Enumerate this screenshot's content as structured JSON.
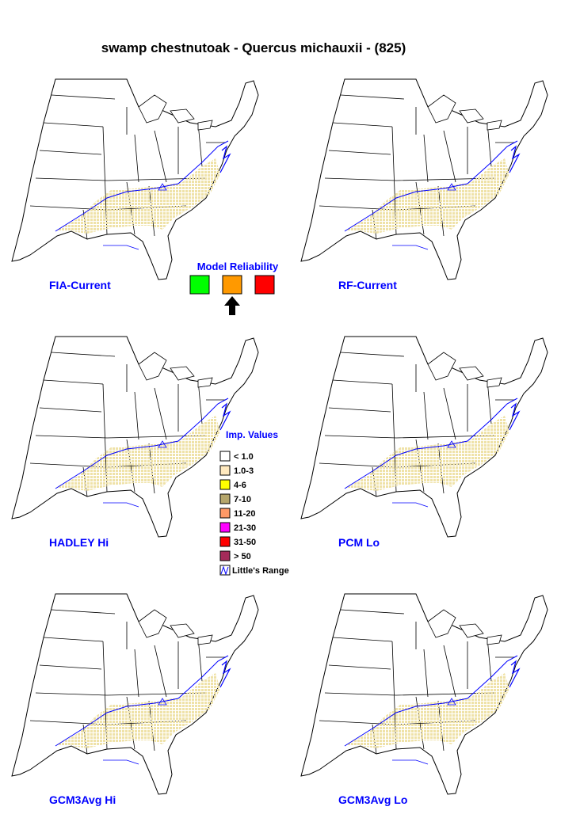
{
  "title": "swamp chestnutoak - Quercus michauxii - (825)",
  "maps": [
    {
      "label": "FIA-Current"
    },
    {
      "label": "RF-Current"
    },
    {
      "label": "HADLEY Hi"
    },
    {
      "label": "PCM Lo"
    },
    {
      "label": "GCM3Avg Hi"
    },
    {
      "label": "GCM3Avg Lo"
    }
  ],
  "model_reliability": {
    "title": "Model Reliability",
    "levels": [
      {
        "color": "#00ff00"
      },
      {
        "color": "#ff9900"
      },
      {
        "color": "#ff0000"
      }
    ],
    "selected": 1
  },
  "legend": {
    "title": "Imp. Values",
    "items": [
      {
        "label": "< 1.0",
        "color": "#ffffff"
      },
      {
        "label": "1.0-3",
        "color": "#ffe9bf"
      },
      {
        "label": "4-6",
        "color": "#ffff00"
      },
      {
        "label": "7-10",
        "color": "#b5a66b"
      },
      {
        "label": "11-20",
        "color": "#ff9966"
      },
      {
        "label": "21-30",
        "color": "#ff00ff"
      },
      {
        "label": "31-50",
        "color": "#ff0000"
      },
      {
        "label": "> 50",
        "color": "#a52a5a"
      }
    ],
    "range_label": "Little's Range"
  }
}
